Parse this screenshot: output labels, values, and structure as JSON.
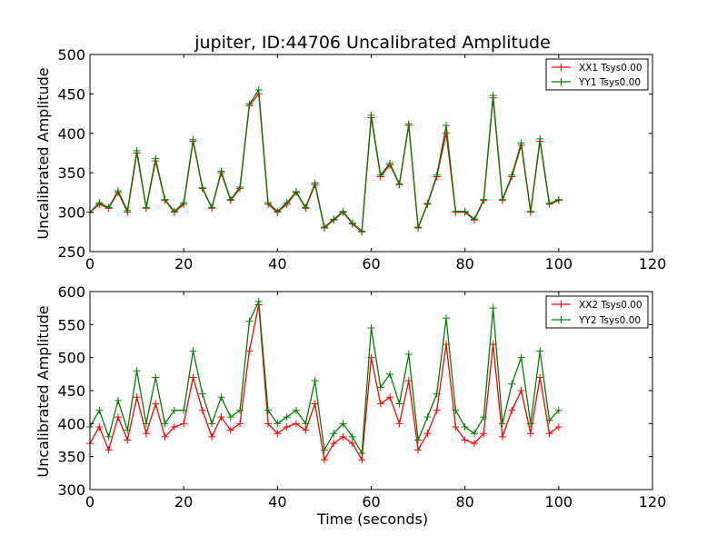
{
  "chart_data": [
    {
      "type": "line",
      "title": "jupiter, ID:44706 Uncalibrated Amplitude",
      "xlabel": "",
      "ylabel": "Uncalibrated Amplitude",
      "xlim": [
        0,
        120
      ],
      "ylim": [
        250,
        500
      ],
      "xticks": [
        0,
        20,
        40,
        60,
        80,
        100,
        120
      ],
      "yticks": [
        250,
        300,
        350,
        400,
        450,
        500
      ],
      "marker": "+",
      "grid": false,
      "legend_position": "top-right",
      "x": [
        0,
        2,
        4,
        6,
        8,
        10,
        12,
        14,
        16,
        18,
        20,
        22,
        24,
        26,
        28,
        30,
        32,
        34,
        36,
        38,
        40,
        42,
        44,
        46,
        48,
        50,
        52,
        54,
        56,
        58,
        60,
        62,
        64,
        66,
        68,
        70,
        72,
        74,
        76,
        78,
        80,
        82,
        84,
        86,
        88,
        90,
        92,
        94,
        96,
        98,
        100
      ],
      "series": [
        {
          "name": "XX1 Tsys0.00",
          "color": "#ff0000",
          "values": [
            300,
            310,
            305,
            325,
            300,
            375,
            305,
            365,
            315,
            300,
            310,
            390,
            330,
            305,
            350,
            315,
            330,
            435,
            450,
            310,
            300,
            310,
            325,
            305,
            335,
            280,
            290,
            300,
            285,
            275,
            420,
            345,
            360,
            335,
            410,
            280,
            310,
            345,
            400,
            300,
            300,
            290,
            315,
            445,
            315,
            345,
            385,
            300,
            390,
            310,
            315
          ]
        },
        {
          "name": "YY1 Tsys0.00",
          "color": "#008000",
          "values": [
            300,
            312,
            306,
            327,
            302,
            378,
            306,
            368,
            316,
            301,
            312,
            392,
            331,
            306,
            352,
            316,
            332,
            437,
            455,
            312,
            301,
            312,
            326,
            306,
            337,
            281,
            291,
            301,
            286,
            276,
            423,
            347,
            362,
            336,
            412,
            281,
            311,
            347,
            410,
            301,
            301,
            291,
            316,
            448,
            316,
            347,
            388,
            301,
            393,
            311,
            316
          ]
        }
      ]
    },
    {
      "type": "line",
      "title": "",
      "xlabel": "Time (seconds)",
      "ylabel": "Uncalibrated Amplitude",
      "xlim": [
        0,
        120
      ],
      "ylim": [
        300,
        600
      ],
      "xticks": [
        0,
        20,
        40,
        60,
        80,
        100,
        120
      ],
      "yticks": [
        300,
        350,
        400,
        450,
        500,
        550,
        600
      ],
      "marker": "+",
      "grid": false,
      "legend_position": "top-right",
      "x": [
        0,
        2,
        4,
        6,
        8,
        10,
        12,
        14,
        16,
        18,
        20,
        22,
        24,
        26,
        28,
        30,
        32,
        34,
        36,
        38,
        40,
        42,
        44,
        46,
        48,
        50,
        52,
        54,
        56,
        58,
        60,
        62,
        64,
        66,
        68,
        70,
        72,
        74,
        76,
        78,
        80,
        82,
        84,
        86,
        88,
        90,
        92,
        94,
        96,
        98,
        100
      ],
      "series": [
        {
          "name": "XX2 Tsys0.00",
          "color": "#ff0000",
          "values": [
            370,
            395,
            360,
            410,
            375,
            440,
            385,
            430,
            380,
            395,
            400,
            470,
            420,
            380,
            410,
            390,
            400,
            510,
            580,
            400,
            385,
            395,
            400,
            390,
            430,
            345,
            370,
            380,
            370,
            345,
            500,
            430,
            440,
            400,
            465,
            360,
            385,
            420,
            520,
            395,
            375,
            370,
            385,
            520,
            380,
            420,
            450,
            385,
            470,
            385,
            395
          ]
        },
        {
          "name": "YY2 Tsys0.00",
          "color": "#008000",
          "values": [
            395,
            420,
            380,
            435,
            390,
            480,
            400,
            470,
            400,
            420,
            420,
            510,
            445,
            400,
            440,
            410,
            420,
            555,
            585,
            420,
            400,
            410,
            420,
            400,
            465,
            360,
            385,
            400,
            380,
            355,
            545,
            455,
            475,
            430,
            505,
            375,
            410,
            445,
            560,
            420,
            395,
            385,
            410,
            575,
            400,
            460,
            500,
            400,
            510,
            405,
            420
          ]
        }
      ]
    }
  ]
}
